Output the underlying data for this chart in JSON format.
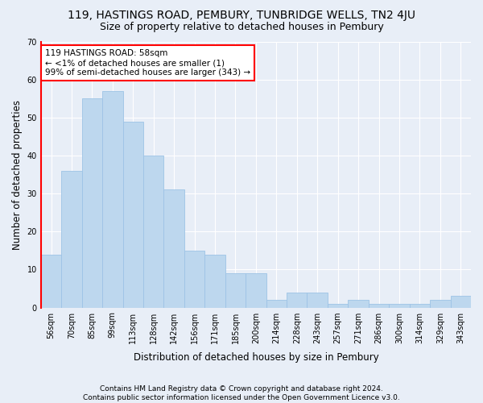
{
  "title": "119, HASTINGS ROAD, PEMBURY, TUNBRIDGE WELLS, TN2 4JU",
  "subtitle": "Size of property relative to detached houses in Pembury",
  "xlabel": "Distribution of detached houses by size in Pembury",
  "ylabel": "Number of detached properties",
  "bar_values": [
    14,
    36,
    55,
    57,
    49,
    40,
    31,
    15,
    14,
    9,
    9,
    2,
    4,
    4,
    1,
    2,
    1,
    1,
    1,
    2,
    3
  ],
  "x_tick_labels": [
    "56sqm",
    "70sqm",
    "85sqm",
    "99sqm",
    "113sqm",
    "128sqm",
    "142sqm",
    "156sqm",
    "171sqm",
    "185sqm",
    "200sqm",
    "214sqm",
    "228sqm",
    "243sqm",
    "257sqm",
    "271sqm",
    "286sqm",
    "300sqm",
    "314sqm",
    "329sqm",
    "343sqm"
  ],
  "bar_color": "#bdd7ee",
  "bar_edge_color": "#9dc3e6",
  "highlight_color": "#ff0000",
  "ylim": [
    0,
    70
  ],
  "yticks": [
    0,
    10,
    20,
    30,
    40,
    50,
    60,
    70
  ],
  "annotation_lines": [
    "119 HASTINGS ROAD: 58sqm",
    "← <1% of detached houses are smaller (1)",
    "99% of semi-detached houses are larger (343) →"
  ],
  "annotation_box_color": "#ffffff",
  "annotation_box_edge_color": "#ff0000",
  "footer_line1": "Contains HM Land Registry data © Crown copyright and database right 2024.",
  "footer_line2": "Contains public sector information licensed under the Open Government Licence v3.0.",
  "background_color": "#e8eef7",
  "plot_bg_color": "#e8eef7",
  "grid_color": "#ffffff",
  "title_fontsize": 10,
  "subtitle_fontsize": 9,
  "axis_label_fontsize": 8.5,
  "tick_fontsize": 7,
  "footer_fontsize": 6.5,
  "annotation_fontsize": 7.5
}
